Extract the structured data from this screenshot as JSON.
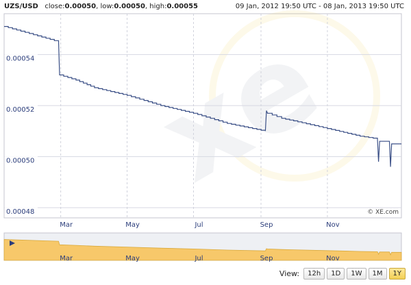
{
  "header": {
    "pair": "UZS/USD",
    "close_label": "close:",
    "close_value": "0.00050",
    "low_label": "low:",
    "low_value": "0.00050",
    "high_label": "high:",
    "high_value": "0.00055",
    "date_range": "09 Jan, 2012 19:50 UTC - 08 Jan, 2013 19:50 UTC"
  },
  "watermark": "xe",
  "copyright": "© XE.com",
  "view": {
    "label": "View:",
    "buttons": [
      "12h",
      "1D",
      "1W",
      "1M",
      "1Y"
    ],
    "active": "1Y"
  },
  "colors": {
    "line": "#3a4f86",
    "grid": "#d9d9e2",
    "plot_bg": "#ffffff",
    "nav_fill": "#f7c86a",
    "accent": "#f2cf55"
  },
  "chart_data": {
    "type": "line",
    "series": [
      {
        "x": [
          "2012-01-09",
          "2012-02-28",
          "2012-02-29",
          "2012-03-15",
          "2012-04-01",
          "2012-05-01",
          "2012-06-01",
          "2012-07-01",
          "2012-08-01",
          "2012-09-05",
          "2012-09-06",
          "2012-09-07",
          "2012-09-20",
          "2012-10-01",
          "2012-11-01",
          "2012-12-01",
          "2012-12-17",
          "2012-12-18",
          "2012-12-19",
          "2012-12-28",
          "2012-12-29",
          "2012-12-30",
          "2013-01-08"
        ],
        "y": [
          0.000551,
          0.000545,
          0.000532,
          0.00053,
          0.000527,
          0.000524,
          0.00052,
          0.000517,
          0.000513,
          0.00051,
          0.000518,
          0.000517,
          0.000515,
          0.000514,
          0.000511,
          0.000508,
          0.000507,
          0.000498,
          0.000506,
          0.000506,
          0.000496,
          0.000505,
          0.000505
        ]
      }
    ],
    "yticks": [
      "0.00054",
      "0.00052",
      "0.00050",
      "0.00048"
    ],
    "ytick_values": [
      0.00054,
      0.00052,
      0.0005,
      0.00048
    ],
    "xticks": [
      "Mar",
      "May",
      "Jul",
      "Sep",
      "Nov"
    ],
    "ylim": [
      0.000476,
      0.000556
    ],
    "xlim": [
      "2012-01-09",
      "2013-01-08"
    ],
    "grid": true
  }
}
